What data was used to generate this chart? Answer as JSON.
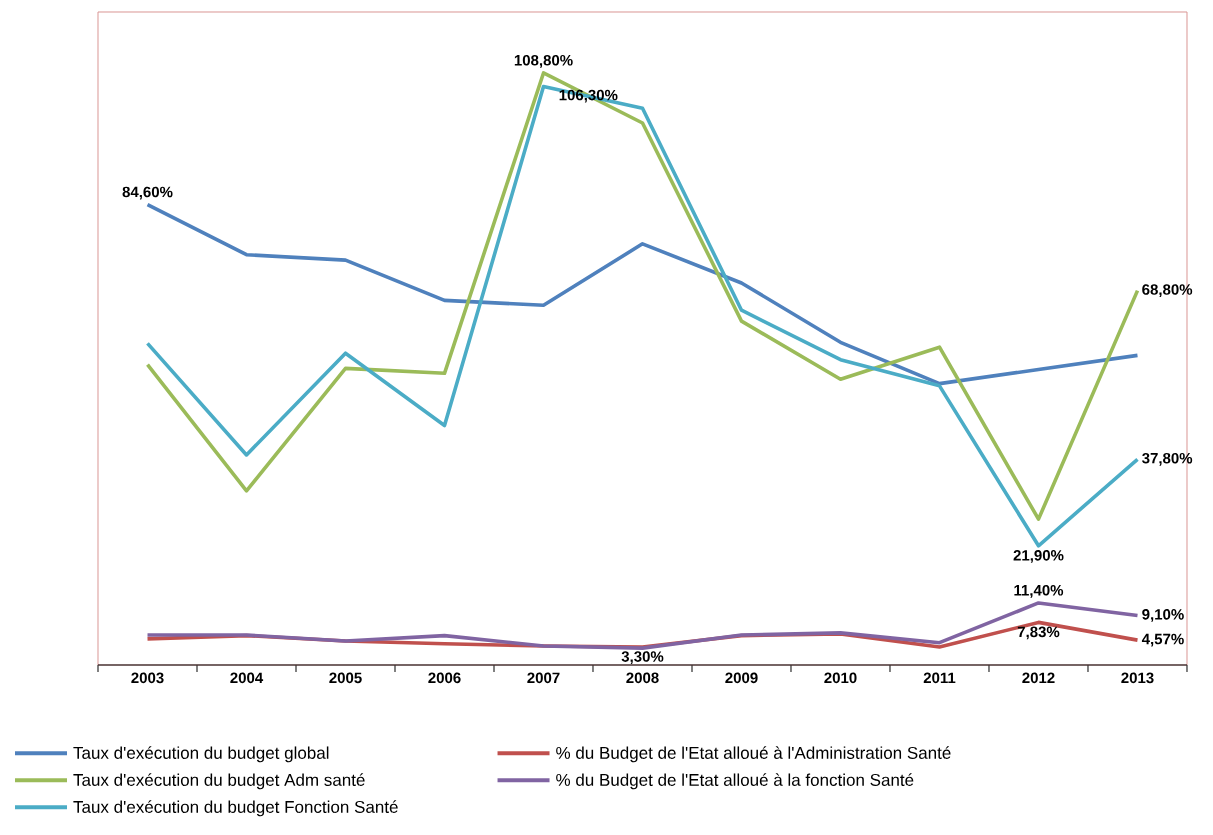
{
  "chart_data": {
    "type": "line",
    "categories": [
      "2003",
      "2004",
      "2005",
      "2006",
      "2007",
      "2008",
      "2009",
      "2010",
      "2011",
      "2012",
      "2013"
    ],
    "ylim": [
      0,
      120
    ],
    "tick_labels": "x",
    "legend": "bottom",
    "series": [
      {
        "name": "Taux d'exécution du budget global",
        "color": "#4f81bd",
        "values": [
          84.6,
          75.4,
          74.4,
          67.0,
          66.1,
          77.4,
          70.2,
          59.3,
          51.7,
          54.3,
          56.9
        ],
        "value_labels": [
          "84,60%",
          null,
          null,
          null,
          null,
          null,
          null,
          null,
          null,
          null,
          null
        ]
      },
      {
        "name": "% du Budget de l'Etat alloué à l'Administration Santé",
        "color": "#c0504d",
        "values": [
          4.8,
          5.4,
          4.4,
          3.9,
          3.5,
          3.3,
          5.4,
          5.7,
          3.3,
          7.83,
          4.57
        ],
        "value_labels": [
          null,
          null,
          null,
          null,
          null,
          "3,30%",
          null,
          null,
          null,
          "7,83%",
          "4,57%"
        ]
      },
      {
        "name": "Taux d'exécution du budget Adm santé",
        "color": "#9bbb59",
        "values": [
          55.2,
          32.0,
          54.5,
          53.6,
          108.8,
          99.6,
          63.2,
          52.5,
          58.4,
          26.8,
          68.8
        ],
        "value_labels": [
          null,
          null,
          null,
          null,
          "108,80%",
          null,
          null,
          null,
          null,
          null,
          "68,80%"
        ]
      },
      {
        "name": "% du Budget de l'Etat alloué à la fonction Santé",
        "color": "#8064a2",
        "values": [
          5.5,
          5.5,
          4.4,
          5.4,
          3.5,
          3.1,
          5.5,
          5.9,
          4.1,
          11.4,
          9.1
        ],
        "value_labels": [
          null,
          null,
          null,
          null,
          null,
          null,
          null,
          null,
          null,
          "11,40%",
          "9,10%"
        ]
      },
      {
        "name": "Taux d'exécution du budget Fonction Santé",
        "color": "#4bacc6",
        "values": [
          59.1,
          38.6,
          57.3,
          44.0,
          106.3,
          102.3,
          65.2,
          56.1,
          51.3,
          21.9,
          37.8
        ],
        "value_labels": [
          null,
          null,
          null,
          null,
          "106,30%",
          null,
          null,
          null,
          null,
          "21,90%",
          "37,80%"
        ]
      }
    ]
  }
}
